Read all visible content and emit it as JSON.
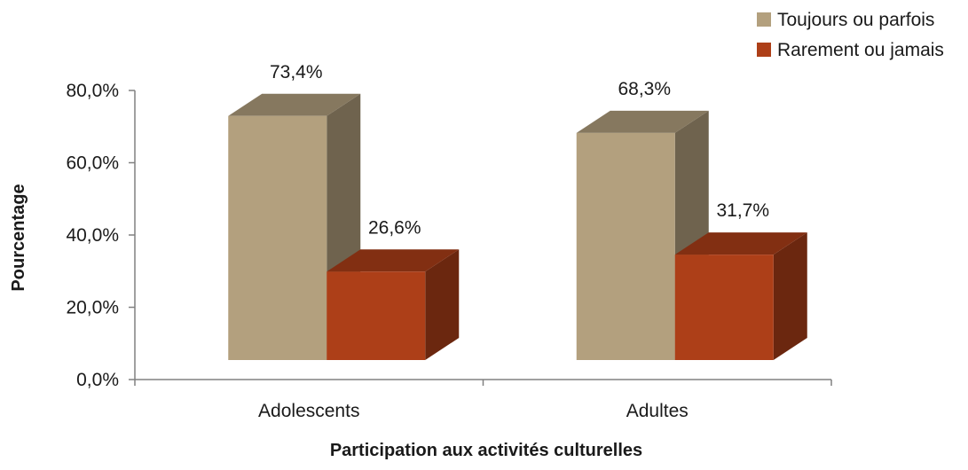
{
  "chart_data": {
    "type": "bar",
    "style": "3d-clustered-column",
    "title": "",
    "xlabel": "Participation  aux activités culturelles",
    "ylabel": "Pourcentage",
    "categories": [
      "Adolescents",
      "Adultes"
    ],
    "series": [
      {
        "name": "Toujours ou parfois",
        "values": [
          73.4,
          68.3
        ],
        "labels": [
          "73,4%",
          "68,3%"
        ],
        "color": "#B3A07E"
      },
      {
        "name": "Rarement ou jamais",
        "values": [
          26.6,
          31.7
        ],
        "labels": [
          "26,6%",
          "31,7%"
        ],
        "color": "#AD3F18"
      }
    ],
    "ylim": [
      0,
      80
    ],
    "yticks": [
      0,
      20,
      40,
      60,
      80
    ],
    "ytick_labels": [
      "0,0%",
      "20,0%",
      "40,0%",
      "60,0%",
      "80,0%"
    ],
    "grid": false,
    "legend_position": "top-right"
  }
}
